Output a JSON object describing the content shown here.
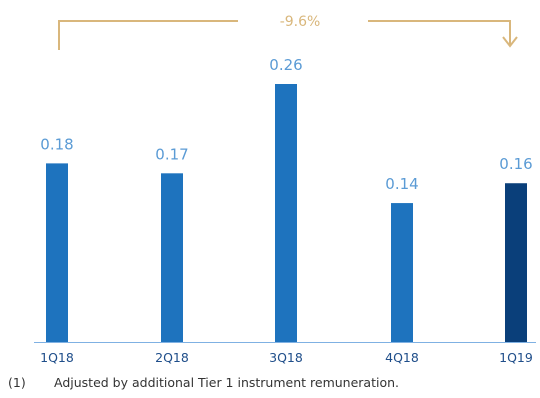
{
  "chart_data": {
    "type": "bar",
    "categories": [
      "1Q18",
      "2Q18",
      "3Q18",
      "4Q18",
      "1Q19"
    ],
    "values": [
      0.18,
      0.17,
      0.26,
      0.14,
      0.16
    ],
    "value_labels": [
      "0.18",
      "0.17",
      "0.26",
      "0.14",
      "0.16"
    ],
    "title": "",
    "xlabel": "",
    "ylabel": "",
    "ylim": [
      0,
      0.26
    ],
    "grid": false,
    "annotation": {
      "text": "-9.6%",
      "from": "1Q18",
      "to": "1Q19"
    }
  },
  "colors": {
    "bar": "#1e73be",
    "bar_highlight": "#0a3f7a",
    "value_label": "#5b9bd5",
    "tick_label": "#1f4e8a",
    "annotation": "#d9b77c",
    "axis": "#7fb1e3"
  },
  "footnote": {
    "marker": "(1)",
    "text": "Adjusted by additional Tier 1 instrument remuneration."
  }
}
